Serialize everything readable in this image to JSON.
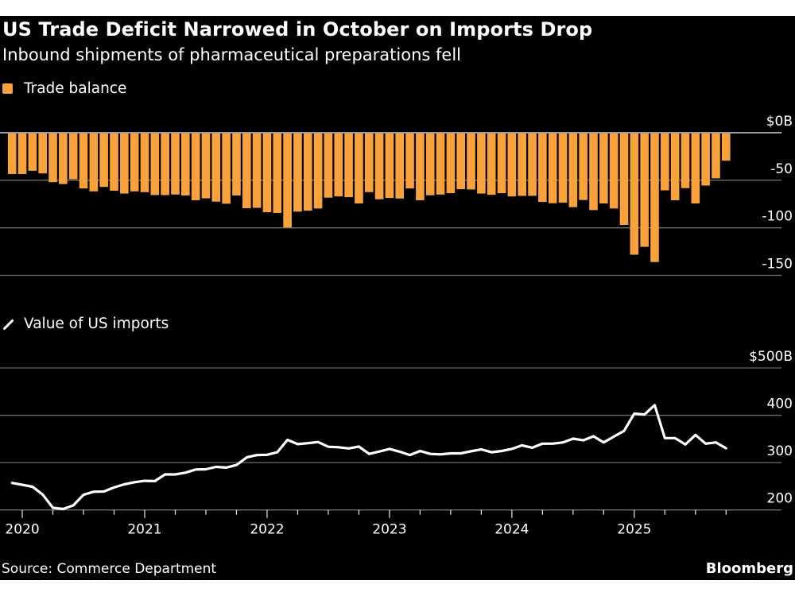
{
  "header": {
    "title": "US Trade Deficit Narrowed in October on Imports Drop",
    "subtitle": "Inbound shipments of pharmaceutical preparations fell"
  },
  "footer": {
    "source": "Source: Commerce Department",
    "brand": "Bloomberg"
  },
  "colors": {
    "background": "#000000",
    "bar": "#F9A13A",
    "line": "#FFFFFF",
    "grid": "#6E6E6E",
    "zero_line": "#FFFFFF"
  },
  "chart_data": [
    {
      "type": "bar",
      "title": "Trade balance",
      "legend": "Trade balance",
      "legend_icon": "square",
      "ylabel": "",
      "ylim": [
        -150,
        0
      ],
      "yticks": [
        0,
        -50,
        -100,
        -150
      ],
      "ytick_labels": [
        "$0B",
        "-50",
        "-100",
        "-150"
      ],
      "y_axis_side": "right",
      "grid": true,
      "start_month": "2019-12",
      "end_month": "2025-10",
      "frequency": "monthly",
      "values": [
        -43.5,
        -43.5,
        -40,
        -42.8,
        -52,
        -54,
        -49,
        -58.6,
        -61.7,
        -57,
        -61,
        -64,
        -61.7,
        -62.5,
        -65.6,
        -65.6,
        -65,
        -66,
        -71,
        -69,
        -72.5,
        -74.7,
        -66,
        -79.4,
        -79,
        -83.6,
        -84.4,
        -99.7,
        -83,
        -82,
        -79.7,
        -68.3,
        -67,
        -67.8,
        -74.4,
        -62.5,
        -70,
        -68.6,
        -69.2,
        -58.6,
        -71,
        -65.8,
        -65,
        -63.6,
        -59.4,
        -59.7,
        -64,
        -65.3,
        -63.6,
        -67,
        -66.4,
        -66.4,
        -72.8,
        -74.2,
        -73.6,
        -78.3,
        -70.8,
        -81.4,
        -74.4,
        -79.7,
        -97,
        -128.3,
        -120,
        -136,
        -60.6,
        -71,
        -58.3,
        -74.4,
        -55.6,
        -48,
        -29.4
      ]
    },
    {
      "type": "line",
      "title": "Value of US imports",
      "legend": "Value of US imports",
      "legend_icon": "line",
      "ylabel": "",
      "ylim": [
        200,
        500
      ],
      "yticks": [
        500,
        400,
        300,
        200
      ],
      "ytick_labels": [
        "$500B",
        "400",
        "300",
        "200"
      ],
      "y_axis_side": "right",
      "grid": true,
      "start_month": "2019-12",
      "end_month": "2025-10",
      "frequency": "monthly",
      "values": [
        257,
        253,
        249,
        232.5,
        204.5,
        202,
        209.5,
        232,
        238.5,
        239,
        247.5,
        254,
        258.6,
        261.5,
        261,
        275,
        275,
        278.7,
        285.5,
        286,
        291,
        289.4,
        295,
        311,
        316,
        316.5,
        321.8,
        348,
        339,
        341,
        343.5,
        333.5,
        332.4,
        330,
        334,
        318.4,
        323.4,
        329,
        323,
        316,
        324.6,
        318.4,
        317.3,
        319.6,
        319.6,
        324,
        328,
        321.8,
        324.6,
        329,
        336.5,
        331.5,
        340,
        340,
        342.7,
        350.6,
        347,
        355.6,
        342.7,
        355,
        367,
        403.4,
        401.7,
        421.4,
        351.7,
        351.7,
        338.3,
        358.5,
        340,
        342.7,
        330.3
      ]
    }
  ],
  "x_axis": {
    "tick_labels": [
      "2020",
      "2021",
      "2022",
      "2023",
      "2024",
      "2025"
    ],
    "major_tick_months": [
      "2020-01",
      "2021-01",
      "2022-01",
      "2023-01",
      "2024-01",
      "2025-01"
    ],
    "minor_tick_interval": "quarter"
  }
}
